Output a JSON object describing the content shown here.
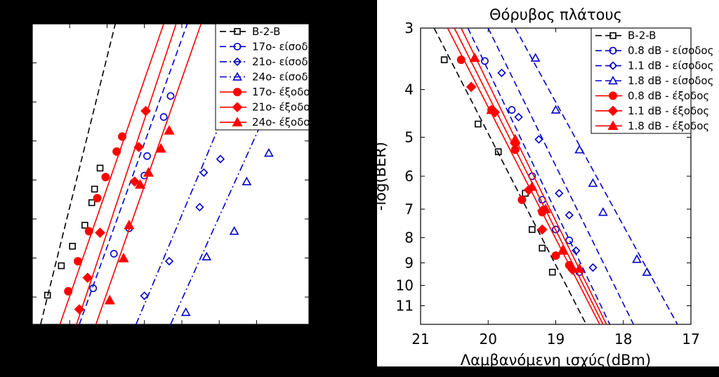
{
  "chart_data": [
    {
      "type": "scatter",
      "title": "",
      "xlabel": "",
      "ylabel": "",
      "legend_placement": "top-right",
      "xlim": [
        0,
        10
      ],
      "ylim": [
        0,
        10
      ],
      "x_ticks": [],
      "y_ticks": [],
      "series": [
        {
          "name": "B-2-B",
          "color": "#000000",
          "marker": "square",
          "dash": "dash",
          "points": [
            [
              0.55,
              0.97
            ],
            [
              1.05,
              1.95
            ],
            [
              1.45,
              2.6
            ],
            [
              1.9,
              3.3
            ],
            [
              2.15,
              4.05
            ],
            [
              2.25,
              4.5
            ],
            [
              2.45,
              5.2
            ]
          ],
          "line": [
            [
              0.3,
              0
            ],
            [
              3.0,
              10
            ]
          ]
        },
        {
          "name": "17ο- είσοδος",
          "color": "#0000cc",
          "marker": "circle",
          "dash": "dash",
          "points": [
            [
              2.2,
              1.2
            ],
            [
              2.95,
              2.35
            ],
            [
              3.5,
              3.2
            ],
            [
              4.05,
              4.95
            ],
            [
              4.15,
              5.6
            ],
            [
              4.75,
              6.9
            ],
            [
              5.0,
              7.6
            ]
          ],
          "line": [
            [
              1.7,
              0
            ],
            [
              5.6,
              10
            ]
          ]
        },
        {
          "name": "21ο- είσοδος",
          "color": "#0000cc",
          "marker": "diamond",
          "dash": "dashdot",
          "points": [
            [
              4.05,
              0.95
            ],
            [
              4.95,
              2.1
            ],
            [
              6.05,
              3.9
            ],
            [
              6.2,
              5.05
            ],
            [
              6.8,
              5.5
            ],
            [
              7.2,
              6.95
            ],
            [
              7.45,
              7.45
            ]
          ],
          "line": [
            [
              3.75,
              0
            ],
            [
              8.3,
              10
            ]
          ]
        },
        {
          "name": "24ο- είσοδος",
          "color": "#0000cc",
          "marker": "triangle",
          "dash": "dashdot",
          "points": [
            [
              5.55,
              0.4
            ],
            [
              6.3,
              2.25
            ],
            [
              7.3,
              3.1
            ],
            [
              7.75,
              4.75
            ],
            [
              8.55,
              5.7
            ],
            [
              9.3,
              7.0
            ],
            [
              9.6,
              7.2
            ]
          ],
          "line": [
            [
              5.0,
              0
            ],
            [
              10,
              10.2
            ]
          ]
        },
        {
          "name": "17ο- έξοδος",
          "color": "#ff0000",
          "marker": "circle",
          "dash": "solid",
          "points": [
            [
              1.3,
              1.1
            ],
            [
              1.65,
              2.1
            ],
            [
              2.05,
              3.1
            ],
            [
              2.35,
              4.2
            ],
            [
              2.65,
              4.9
            ],
            [
              3.05,
              5.75
            ],
            [
              3.25,
              6.25
            ]
          ],
          "line": [
            [
              1.0,
              0
            ],
            [
              4.75,
              10
            ]
          ]
        },
        {
          "name": "21ο- έξοδος",
          "color": "#ff0000",
          "marker": "diamond",
          "dash": "solid",
          "points": [
            [
              1.7,
              0.5
            ],
            [
              2.0,
              1.55
            ],
            [
              2.45,
              3.05
            ],
            [
              3.7,
              4.75
            ],
            [
              3.85,
              5.9
            ],
            [
              4.1,
              7.1
            ]
          ],
          "line": [
            [
              1.6,
              0
            ],
            [
              5.2,
              10
            ]
          ]
        },
        {
          "name": "24ο- έξοδος",
          "color": "#ff0000",
          "marker": "triangle",
          "dash": "solid",
          "points": [
            [
              2.8,
              0.8
            ],
            [
              3.3,
              2.2
            ],
            [
              3.5,
              3.3
            ],
            [
              3.9,
              4.65
            ],
            [
              4.2,
              5.05
            ],
            [
              4.65,
              5.85
            ],
            [
              4.95,
              6.45
            ]
          ],
          "line": [
            [
              2.3,
              0
            ],
            [
              6.1,
              10
            ]
          ]
        }
      ]
    },
    {
      "type": "scatter",
      "title": "Θόρυβος πλάτους",
      "xlabel": "Λαμβανόμενη ισχύς(dBm)",
      "ylabel": "-log(BER)",
      "legend_placement": "top-right",
      "x_reversed": true,
      "y_reversed": true,
      "y_scale": "log",
      "xlim": [
        21,
        17
      ],
      "ylim": [
        3,
        12
      ],
      "x_ticks": [
        "21",
        "20",
        "19",
        "18",
        "17"
      ],
      "y_ticks": [
        "3",
        "4",
        "5",
        "6",
        "7",
        "8",
        "9",
        "10",
        "11"
      ],
      "series": [
        {
          "name": "B-2-B",
          "color": "#000000",
          "marker": "square",
          "dash": "dash",
          "points": [
            [
              20.65,
              3.48
            ],
            [
              20.15,
              4.7
            ],
            [
              19.85,
              5.35
            ],
            [
              19.45,
              6.5
            ],
            [
              19.35,
              7.7
            ],
            [
              19.2,
              8.4
            ],
            [
              19.05,
              9.4
            ]
          ],
          "line": [
            [
              20.8,
              3.0
            ],
            [
              18.55,
              12.0
            ]
          ]
        },
        {
          "name": "0.8 dB - είσοδος",
          "color": "#0000cc",
          "marker": "circle",
          "dash": "dash",
          "points": [
            [
              20.05,
              3.5
            ],
            [
              19.65,
              4.4
            ],
            [
              19.35,
              6.0
            ],
            [
              19.2,
              6.7
            ],
            [
              19.0,
              7.7
            ],
            [
              18.8,
              8.1
            ],
            [
              18.65,
              9.4
            ]
          ],
          "line": [
            [
              20.3,
              3.0
            ],
            [
              18.2,
              12.0
            ]
          ]
        },
        {
          "name": "1.1 dB - είσοδος",
          "color": "#0000cc",
          "marker": "diamond",
          "dash": "dash",
          "points": [
            [
              19.8,
              3.7
            ],
            [
              19.55,
              4.55
            ],
            [
              19.25,
              5.05
            ],
            [
              18.95,
              6.5
            ],
            [
              18.8,
              7.2
            ],
            [
              18.7,
              8.5
            ],
            [
              18.45,
              9.2
            ]
          ],
          "line": [
            [
              20.0,
              3.0
            ],
            [
              17.85,
              12.0
            ]
          ]
        },
        {
          "name": "1.8 dB - είσοδος",
          "color": "#0000cc",
          "marker": "triangle",
          "dash": "dash",
          "points": [
            [
              19.3,
              3.45
            ],
            [
              19.0,
              4.4
            ],
            [
              18.65,
              5.3
            ],
            [
              18.45,
              6.2
            ],
            [
              18.3,
              7.1
            ],
            [
              17.8,
              8.85
            ],
            [
              17.65,
              9.4
            ]
          ],
          "line": [
            [
              19.6,
              3.0
            ],
            [
              17.2,
              12.0
            ]
          ]
        },
        {
          "name": "0.8 dB - έξοδος",
          "color": "#ff0000",
          "marker": "circle",
          "dash": "solid",
          "points": [
            [
              20.4,
              3.48
            ],
            [
              19.95,
              4.4
            ],
            [
              19.6,
              5.3
            ],
            [
              19.5,
              6.7
            ],
            [
              19.2,
              7.1
            ],
            [
              19.0,
              8.7
            ],
            [
              18.8,
              9.1
            ]
          ],
          "line": [
            [
              20.6,
              3.0
            ],
            [
              18.35,
              12.0
            ]
          ]
        },
        {
          "name": "1.1 dB - έξοδος",
          "color": "#ff0000",
          "marker": "diamond",
          "dash": "solid",
          "points": [
            [
              20.25,
              3.95
            ],
            [
              19.9,
              4.45
            ],
            [
              19.6,
              5.15
            ],
            [
              19.4,
              6.4
            ],
            [
              19.2,
              7.05
            ],
            [
              19.2,
              7.7
            ],
            [
              18.75,
              9.3
            ]
          ],
          "line": [
            [
              20.5,
              3.0
            ],
            [
              18.3,
              12.0
            ]
          ]
        },
        {
          "name": "1.8 dB - έξοδος",
          "color": "#ff0000",
          "marker": "triangle",
          "dash": "solid",
          "points": [
            [
              20.2,
              3.45
            ],
            [
              19.95,
              4.4
            ],
            [
              19.6,
              5.05
            ],
            [
              19.35,
              6.3
            ],
            [
              19.15,
              7.0
            ],
            [
              18.9,
              8.5
            ],
            [
              18.65,
              9.25
            ]
          ],
          "line": [
            [
              20.4,
              3.0
            ],
            [
              18.25,
              12.0
            ]
          ]
        }
      ]
    }
  ]
}
